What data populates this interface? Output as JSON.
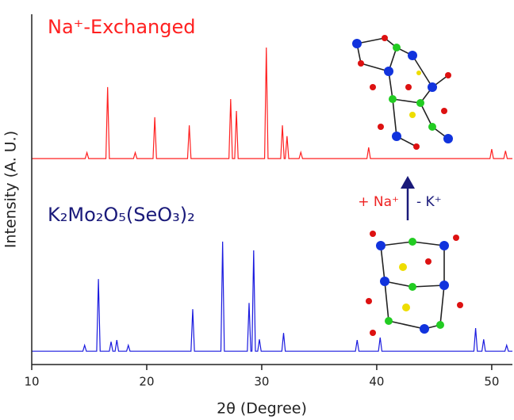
{
  "chart_data": {
    "type": "line",
    "xlabel": "2θ (Degree)",
    "ylabel": "Intensity (A. U.)",
    "xlim": [
      10,
      51.8
    ],
    "xticks": [
      10,
      20,
      30,
      40,
      50
    ],
    "ylim": [
      0,
      100
    ],
    "annotations": [
      "+ Na⁺",
      "- K⁺"
    ],
    "series": [
      {
        "name": "Na⁺-Exchanged",
        "color": "#ff2020",
        "x": [
          10,
          14.65,
          14.8,
          14.95,
          16.45,
          16.6,
          16.75,
          18.85,
          19.0,
          19.15,
          20.55,
          20.7,
          20.85,
          23.55,
          23.7,
          23.85,
          27.15,
          27.3,
          27.45,
          27.65,
          27.8,
          27.95,
          30.25,
          30.4,
          30.55,
          31.65,
          31.8,
          31.95,
          32.05,
          32.2,
          32.35,
          33.25,
          33.4,
          33.55,
          39.15,
          39.3,
          39.45,
          49.85,
          50.0,
          50.15,
          51.05,
          51.2,
          51.35,
          51.8
        ],
        "values": [
          58.8,
          58.8,
          60.5,
          58.8,
          58.8,
          79.2,
          58.8,
          58.8,
          60.5,
          58.8,
          58.8,
          70.6,
          58.8,
          58.8,
          68.3,
          58.8,
          58.8,
          75.8,
          58.8,
          58.8,
          72.4,
          58.8,
          58.8,
          90.5,
          58.8,
          58.8,
          68.3,
          58.8,
          58.8,
          65.2,
          58.8,
          58.8,
          60.6,
          58.8,
          58.8,
          62.0,
          58.8,
          58.8,
          61.5,
          58.8,
          58.8,
          61,
          58.8,
          58.8
        ]
      },
      {
        "name": "K₂Mo₂O₅(SeO₃)₂",
        "color": "#1a1adf",
        "x": [
          10,
          14.45,
          14.6,
          14.75,
          15.65,
          15.8,
          15.95,
          16.75,
          16.9,
          17.05,
          17.25,
          17.4,
          17.55,
          18.25,
          18.4,
          18.55,
          23.85,
          24.0,
          24.15,
          26.45,
          26.6,
          26.75,
          28.75,
          28.9,
          29.05,
          29.15,
          29.3,
          29.45,
          29.65,
          29.8,
          29.95,
          31.75,
          31.9,
          32.05,
          38.15,
          38.3,
          38.45,
          40.15,
          40.3,
          40.45,
          48.45,
          48.6,
          48.75,
          49.15,
          49.3,
          49.45,
          51.15,
          51.3,
          51.45,
          51.8
        ],
        "values": [
          3.8,
          3.8,
          5.5,
          3.8,
          3.8,
          24.4,
          3.8,
          3.8,
          6.5,
          3.8,
          3.8,
          7,
          3.8,
          3.8,
          5.5,
          3.8,
          3.8,
          15.8,
          3.8,
          3.8,
          35.1,
          3.8,
          3.8,
          17.6,
          3.8,
          3.8,
          32.6,
          3.8,
          3.8,
          7.2,
          3.8,
          3.8,
          9,
          3.8,
          3.8,
          7,
          3.8,
          3.8,
          7.7,
          3.8,
          3.8,
          10.4,
          3.8,
          3.8,
          7.2,
          3.8,
          3.8,
          5.5,
          3.8,
          3.8
        ]
      }
    ]
  }
}
